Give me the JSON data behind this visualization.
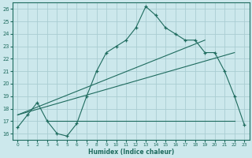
{
  "xlabel": "Humidex (Indice chaleur)",
  "bg_color": "#cce8ec",
  "grid_color": "#aacdd2",
  "line_color": "#1e6b5e",
  "xlim": [
    -0.5,
    23.5
  ],
  "ylim": [
    15.5,
    26.5
  ],
  "xticks": [
    0,
    1,
    2,
    3,
    4,
    5,
    6,
    7,
    8,
    9,
    10,
    11,
    12,
    13,
    14,
    15,
    16,
    17,
    18,
    19,
    20,
    21,
    22,
    23
  ],
  "yticks": [
    16,
    17,
    18,
    19,
    20,
    21,
    22,
    23,
    24,
    25,
    26
  ],
  "curve1_x": [
    0,
    1,
    2,
    3,
    4,
    5,
    6,
    7,
    8,
    9,
    10,
    11,
    12,
    13,
    14,
    15,
    16,
    17,
    18,
    19,
    20,
    21,
    22,
    23
  ],
  "curve1_y": [
    16.5,
    17.5,
    18.5,
    17.0,
    16.0,
    15.8,
    16.8,
    19.0,
    21.0,
    22.5,
    23.0,
    23.5,
    24.5,
    26.2,
    25.5,
    24.5,
    24.0,
    23.5,
    23.5,
    22.5,
    22.5,
    21.0,
    19.0,
    16.7
  ],
  "curve2_x": [
    3,
    22
  ],
  "curve2_y": [
    17.0,
    17.0
  ],
  "curve3_x": [
    0,
    19
  ],
  "curve3_y": [
    17.5,
    23.5
  ],
  "curve4_x": [
    0,
    22
  ],
  "curve4_y": [
    17.5,
    22.5
  ]
}
